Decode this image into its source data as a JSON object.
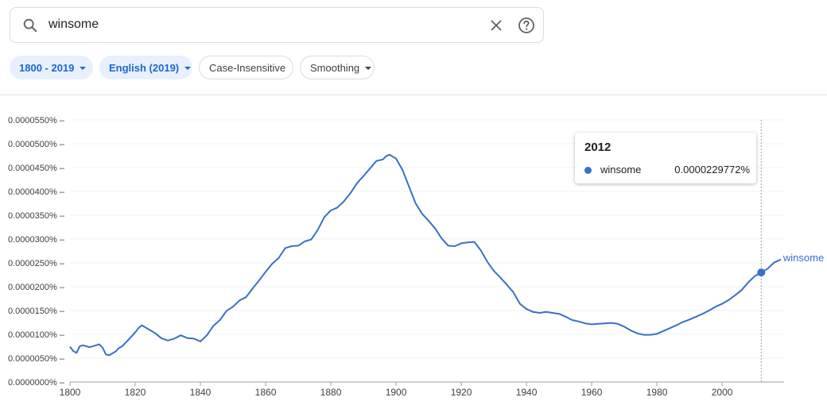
{
  "search": {
    "query": "winsome"
  },
  "filters": {
    "year_range": "1800 - 2019",
    "corpus": "English (2019)",
    "case": "Case-Insensitive",
    "smoothing": "Smoothing"
  },
  "tooltip": {
    "year": "2012",
    "series": "winsome",
    "value": "0.0000229772%"
  },
  "colors": {
    "line": "#3a6fca",
    "chip_active_bg": "#e8f0fe",
    "chip_active_text": "#1967d2"
  },
  "chart_data": {
    "type": "line",
    "xlim": [
      1800,
      2019
    ],
    "ylim": [
      0,
      5.5e-05
    ],
    "x_ticks": [
      1800,
      1820,
      1840,
      1860,
      1880,
      1900,
      1920,
      1940,
      1960,
      1980,
      2000
    ],
    "y_ticks": [
      {
        "value": 0.0,
        "label": "0.0000000%"
      },
      {
        "value": 5e-06,
        "label": "0.0000050%"
      },
      {
        "value": 1e-05,
        "label": "0.0000100%"
      },
      {
        "value": 1.5e-05,
        "label": "0.0000150%"
      },
      {
        "value": 2e-05,
        "label": "0.0000200%"
      },
      {
        "value": 2.5e-05,
        "label": "0.0000250%"
      },
      {
        "value": 3e-05,
        "label": "0.0000300%"
      },
      {
        "value": 3.5e-05,
        "label": "0.0000350%"
      },
      {
        "value": 4e-05,
        "label": "0.0000400%"
      },
      {
        "value": 4.5e-05,
        "label": "0.0000450%"
      },
      {
        "value": 5e-05,
        "label": "0.0000500%"
      },
      {
        "value": 5.5e-05,
        "label": "0.0000550%"
      }
    ],
    "highlight": {
      "x": 2012,
      "y": 2.29772e-05
    },
    "series": [
      {
        "name": "winsome",
        "x": [
          1800,
          1801,
          1802,
          1803,
          1804,
          1806,
          1808,
          1809,
          1810,
          1811,
          1812,
          1814,
          1815,
          1816,
          1818,
          1820,
          1821,
          1822,
          1824,
          1826,
          1828,
          1830,
          1832,
          1834,
          1836,
          1838,
          1840,
          1842,
          1844,
          1846,
          1848,
          1850,
          1852,
          1854,
          1856,
          1858,
          1860,
          1862,
          1864,
          1866,
          1868,
          1870,
          1872,
          1874,
          1876,
          1878,
          1880,
          1882,
          1884,
          1886,
          1888,
          1890,
          1892,
          1894,
          1896,
          1897,
          1898,
          1899,
          1900,
          1902,
          1904,
          1906,
          1908,
          1910,
          1912,
          1914,
          1916,
          1918,
          1920,
          1922,
          1924,
          1926,
          1928,
          1930,
          1932,
          1934,
          1936,
          1938,
          1940,
          1942,
          1944,
          1946,
          1948,
          1950,
          1952,
          1954,
          1956,
          1958,
          1960,
          1962,
          1964,
          1966,
          1968,
          1970,
          1972,
          1974,
          1976,
          1978,
          1980,
          1982,
          1984,
          1986,
          1988,
          1990,
          1992,
          1994,
          1996,
          1998,
          2000,
          2002,
          2004,
          2006,
          2008,
          2010,
          2012,
          2014,
          2016,
          2018
        ],
        "y": [
          7.4e-06,
          6.5e-06,
          6.1e-06,
          7.5e-06,
          7.7e-06,
          7.3e-06,
          7.7e-06,
          7.9e-06,
          7.2e-06,
          5.8e-06,
          5.6e-06,
          6.4e-06,
          7.1e-06,
          7.5e-06,
          8.9e-06,
          1.04e-05,
          1.13e-05,
          1.19e-05,
          1.11e-05,
          1.03e-05,
          9.2e-06,
          8.7e-06,
          9.1e-06,
          9.8e-06,
          9.2e-06,
          9.1e-06,
          8.5e-06,
          9.8e-06,
          1.18e-05,
          1.3e-05,
          1.49e-05,
          1.58e-05,
          1.71e-05,
          1.78e-05,
          1.96e-05,
          2.13e-05,
          2.31e-05,
          2.48e-05,
          2.6e-05,
          2.81e-05,
          2.85e-05,
          2.86e-05,
          2.95e-05,
          2.99e-05,
          3.19e-05,
          3.46e-05,
          3.6e-05,
          3.66e-05,
          3.79e-05,
          3.96e-05,
          4.17e-05,
          4.32e-05,
          4.48e-05,
          4.64e-05,
          4.67e-05,
          4.74e-05,
          4.77e-05,
          4.73e-05,
          4.69e-05,
          4.45e-05,
          4.1e-05,
          3.75e-05,
          3.53e-05,
          3.38e-05,
          3.22e-05,
          3.01e-05,
          2.86e-05,
          2.85e-05,
          2.91e-05,
          2.93e-05,
          2.94e-05,
          2.76e-05,
          2.52e-05,
          2.33e-05,
          2.19e-05,
          2.04e-05,
          1.88e-05,
          1.64e-05,
          1.53e-05,
          1.47e-05,
          1.45e-05,
          1.47e-05,
          1.45e-05,
          1.43e-05,
          1.37e-05,
          1.3e-05,
          1.27e-05,
          1.23e-05,
          1.21e-05,
          1.22e-05,
          1.23e-05,
          1.24e-05,
          1.22e-05,
          1.16e-05,
          1.08e-05,
          1.02e-05,
          9.9e-06,
          9.9e-06,
          1.01e-05,
          1.07e-05,
          1.13e-05,
          1.19e-05,
          1.26e-05,
          1.31e-05,
          1.37e-05,
          1.43e-05,
          1.5e-05,
          1.58e-05,
          1.64e-05,
          1.72e-05,
          1.82e-05,
          1.93e-05,
          2.09e-05,
          2.22e-05,
          2.29772e-05,
          2.38e-05,
          2.51e-05,
          2.57e-05
        ]
      }
    ],
    "end_label": "winsome"
  }
}
